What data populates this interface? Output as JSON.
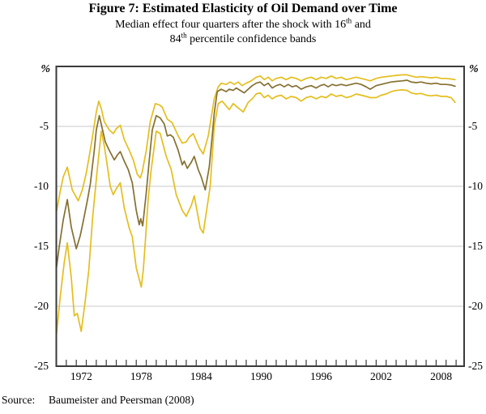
{
  "figure": {
    "title": "Figure 7: Estimated Elasticity of Oil Demand over Time",
    "subtitle_line1": {
      "pre": "Median effect four quarters after the shock with 16",
      "sup": "th",
      "post": " and"
    },
    "subtitle_line2": {
      "pre": "84",
      "sup": "th",
      "post": " percentile confidence bands"
    },
    "source_label": "Source:",
    "source_text": "Baumeister and Peersman (2008)"
  },
  "chart_data": {
    "type": "line",
    "title": "Figure 7: Estimated Elasticity of Oil Demand over Time",
    "subtitle": "Median effect four quarters after the shock with 16th and 84th percentile confidence bands",
    "xlabel": "",
    "ylabel": "%",
    "ylim": [
      -25,
      0
    ],
    "xlim": [
      1970,
      2010.8
    ],
    "grid": "horizontal",
    "grid_values": [
      -5,
      -10,
      -15,
      -20
    ],
    "legend_position": "none",
    "y_tick_values": [
      -5,
      -10,
      -15,
      -20,
      -25
    ],
    "y_tick_labels": [
      "-5",
      "-10",
      "-15",
      "-20",
      "-25"
    ],
    "y_axis_unit": "%",
    "x_tick_years": [
      1972,
      1978,
      1984,
      1990,
      1996,
      2002,
      2008
    ],
    "x_tick_labels": [
      "1972",
      "1978",
      "1984",
      "1990",
      "1996",
      "2002",
      "2008"
    ],
    "x_minor_tick_start": 1971,
    "x_minor_tick_end": 2010,
    "x_minor_tick_step": 1,
    "colors": {
      "band": "#E4BE1E",
      "median": "#857031",
      "grid": "#C9C9C9",
      "axis": "#3A3A3A",
      "text": "#000000"
    },
    "series": [
      {
        "name": "84th percentile band",
        "color": "#E4BE1E",
        "width": 1.7,
        "points": [
          [
            1970.0,
            -12.2
          ],
          [
            1970.4,
            -10.4
          ],
          [
            1970.7,
            -9.2
          ],
          [
            1971.1,
            -8.4
          ],
          [
            1971.6,
            -10.3
          ],
          [
            1972.2,
            -11.2
          ],
          [
            1972.6,
            -10.3
          ],
          [
            1973.0,
            -8.9
          ],
          [
            1973.5,
            -6.5
          ],
          [
            1974.0,
            -3.8
          ],
          [
            1974.25,
            -2.9
          ],
          [
            1974.5,
            -3.5
          ],
          [
            1974.8,
            -4.6
          ],
          [
            1975.3,
            -5.3
          ],
          [
            1975.7,
            -5.6
          ],
          [
            1976.0,
            -5.2
          ],
          [
            1976.4,
            -4.9
          ],
          [
            1976.8,
            -6.1
          ],
          [
            1977.3,
            -7.0
          ],
          [
            1977.7,
            -7.8
          ],
          [
            1978.1,
            -9.0
          ],
          [
            1978.4,
            -9.3
          ],
          [
            1978.6,
            -8.8
          ],
          [
            1979.0,
            -7.0
          ],
          [
            1979.4,
            -4.6
          ],
          [
            1979.9,
            -3.1
          ],
          [
            1980.3,
            -3.2
          ],
          [
            1980.6,
            -3.4
          ],
          [
            1981.1,
            -4.4
          ],
          [
            1981.6,
            -4.7
          ],
          [
            1982.2,
            -5.8
          ],
          [
            1982.6,
            -6.4
          ],
          [
            1983.0,
            -6.3
          ],
          [
            1983.3,
            -5.9
          ],
          [
            1983.7,
            -5.6
          ],
          [
            1984.3,
            -6.8
          ],
          [
            1984.7,
            -7.3
          ],
          [
            1985.2,
            -5.8
          ],
          [
            1985.8,
            -2.7
          ],
          [
            1986.2,
            -1.7
          ],
          [
            1986.5,
            -1.4
          ],
          [
            1987.0,
            -1.5
          ],
          [
            1987.4,
            -1.3
          ],
          [
            1987.8,
            -1.5
          ],
          [
            1988.2,
            -1.3
          ],
          [
            1988.6,
            -1.6
          ],
          [
            1989.0,
            -1.4
          ],
          [
            1989.5,
            -1.2
          ],
          [
            1990.0,
            -0.9
          ],
          [
            1990.4,
            -0.8
          ],
          [
            1990.8,
            -1.1
          ],
          [
            1991.2,
            -0.9
          ],
          [
            1991.6,
            -1.2
          ],
          [
            1992.0,
            -1.0
          ],
          [
            1992.5,
            -0.9
          ],
          [
            1993.0,
            -1.1
          ],
          [
            1993.5,
            -0.9
          ],
          [
            1994.0,
            -1.0
          ],
          [
            1994.5,
            -1.2
          ],
          [
            1995.0,
            -1.0
          ],
          [
            1995.5,
            -0.9
          ],
          [
            1996.0,
            -1.1
          ],
          [
            1996.5,
            -0.9
          ],
          [
            1997.0,
            -1.0
          ],
          [
            1997.5,
            -0.8
          ],
          [
            1998.0,
            -1.0
          ],
          [
            1998.5,
            -0.9
          ],
          [
            1999.0,
            -1.1
          ],
          [
            1999.5,
            -1.0
          ],
          [
            2000.0,
            -0.9
          ],
          [
            2000.5,
            -1.0
          ],
          [
            2001.0,
            -1.1
          ],
          [
            2001.4,
            -1.2
          ],
          [
            2002.0,
            -1.0
          ],
          [
            2002.5,
            -0.9
          ],
          [
            2003.0,
            -0.85
          ],
          [
            2003.5,
            -0.8
          ],
          [
            2004.0,
            -0.75
          ],
          [
            2004.6,
            -0.7
          ],
          [
            2005.1,
            -0.7
          ],
          [
            2005.5,
            -0.8
          ],
          [
            2006.0,
            -0.9
          ],
          [
            2006.5,
            -0.85
          ],
          [
            2007.0,
            -0.9
          ],
          [
            2007.5,
            -0.95
          ],
          [
            2008.0,
            -0.9
          ],
          [
            2008.5,
            -1.0
          ],
          [
            2009.0,
            -1.0
          ],
          [
            2009.5,
            -1.05
          ],
          [
            2009.9,
            -1.1
          ]
        ]
      },
      {
        "name": "Median",
        "color": "#857031",
        "width": 1.7,
        "points": [
          [
            1970.0,
            -16.9
          ],
          [
            1970.3,
            -15.0
          ],
          [
            1970.7,
            -12.8
          ],
          [
            1971.1,
            -11.1
          ],
          [
            1971.5,
            -13.4
          ],
          [
            1972.0,
            -15.2
          ],
          [
            1972.4,
            -14.1
          ],
          [
            1972.7,
            -12.9
          ],
          [
            1973.1,
            -11.2
          ],
          [
            1973.4,
            -9.8
          ],
          [
            1973.8,
            -7.0
          ],
          [
            1974.0,
            -5.3
          ],
          [
            1974.3,
            -4.1
          ],
          [
            1974.6,
            -5.2
          ],
          [
            1974.9,
            -6.3
          ],
          [
            1975.3,
            -7.0
          ],
          [
            1975.8,
            -7.8
          ],
          [
            1976.1,
            -7.4
          ],
          [
            1976.4,
            -7.1
          ],
          [
            1976.8,
            -7.9
          ],
          [
            1977.2,
            -8.6
          ],
          [
            1977.6,
            -9.7
          ],
          [
            1978.0,
            -12.0
          ],
          [
            1978.3,
            -13.2
          ],
          [
            1978.45,
            -12.7
          ],
          [
            1978.65,
            -13.3
          ],
          [
            1979.0,
            -10.5
          ],
          [
            1979.3,
            -7.8
          ],
          [
            1979.6,
            -5.3
          ],
          [
            1980.0,
            -4.1
          ],
          [
            1980.4,
            -4.3
          ],
          [
            1980.8,
            -4.8
          ],
          [
            1981.1,
            -5.8
          ],
          [
            1981.4,
            -5.7
          ],
          [
            1981.7,
            -5.9
          ],
          [
            1982.2,
            -7.0
          ],
          [
            1982.6,
            -8.2
          ],
          [
            1982.8,
            -7.9
          ],
          [
            1983.1,
            -8.5
          ],
          [
            1983.5,
            -8.0
          ],
          [
            1983.8,
            -7.5
          ],
          [
            1984.2,
            -8.6
          ],
          [
            1984.5,
            -9.2
          ],
          [
            1984.9,
            -10.3
          ],
          [
            1985.3,
            -8.4
          ],
          [
            1985.6,
            -5.8
          ],
          [
            1985.8,
            -3.9
          ],
          [
            1986.1,
            -2.1
          ],
          [
            1986.5,
            -1.9
          ],
          [
            1987.0,
            -2.1
          ],
          [
            1987.3,
            -1.9
          ],
          [
            1987.7,
            -2.0
          ],
          [
            1988.0,
            -1.8
          ],
          [
            1988.4,
            -2.0
          ],
          [
            1988.8,
            -2.2
          ],
          [
            1989.2,
            -1.9
          ],
          [
            1989.6,
            -1.6
          ],
          [
            1990.0,
            -1.4
          ],
          [
            1990.4,
            -1.3
          ],
          [
            1990.8,
            -1.6
          ],
          [
            1991.2,
            -1.4
          ],
          [
            1991.6,
            -1.8
          ],
          [
            1992.0,
            -1.6
          ],
          [
            1992.4,
            -1.5
          ],
          [
            1992.8,
            -1.7
          ],
          [
            1993.2,
            -1.5
          ],
          [
            1993.6,
            -1.7
          ],
          [
            1994.0,
            -1.6
          ],
          [
            1994.5,
            -1.9
          ],
          [
            1995.0,
            -1.7
          ],
          [
            1995.5,
            -1.6
          ],
          [
            1996.0,
            -1.8
          ],
          [
            1996.4,
            -1.6
          ],
          [
            1996.8,
            -1.5
          ],
          [
            1997.2,
            -1.7
          ],
          [
            1997.6,
            -1.5
          ],
          [
            1998.0,
            -1.6
          ],
          [
            1998.5,
            -1.5
          ],
          [
            1999.0,
            -1.6
          ],
          [
            1999.5,
            -1.5
          ],
          [
            2000.0,
            -1.4
          ],
          [
            2000.5,
            -1.5
          ],
          [
            2001.0,
            -1.7
          ],
          [
            2001.4,
            -1.9
          ],
          [
            2002.0,
            -1.6
          ],
          [
            2002.5,
            -1.5
          ],
          [
            2003.0,
            -1.4
          ],
          [
            2003.5,
            -1.3
          ],
          [
            2004.0,
            -1.25
          ],
          [
            2004.6,
            -1.2
          ],
          [
            2005.1,
            -1.15
          ],
          [
            2005.5,
            -1.3
          ],
          [
            2006.0,
            -1.35
          ],
          [
            2006.5,
            -1.3
          ],
          [
            2007.0,
            -1.4
          ],
          [
            2007.5,
            -1.45
          ],
          [
            2008.0,
            -1.4
          ],
          [
            2008.5,
            -1.5
          ],
          [
            2009.0,
            -1.5
          ],
          [
            2009.5,
            -1.55
          ],
          [
            2009.9,
            -1.65
          ]
        ]
      },
      {
        "name": "16th percentile band",
        "color": "#E4BE1E",
        "width": 1.7,
        "points": [
          [
            1970.0,
            -22.5
          ],
          [
            1970.4,
            -19.2
          ],
          [
            1970.8,
            -16.3
          ],
          [
            1971.1,
            -14.7
          ],
          [
            1971.5,
            -17.6
          ],
          [
            1971.8,
            -20.8
          ],
          [
            1972.1,
            -20.6
          ],
          [
            1972.5,
            -22.1
          ],
          [
            1972.9,
            -19.5
          ],
          [
            1973.25,
            -17.0
          ],
          [
            1973.65,
            -12.5
          ],
          [
            1974.1,
            -8.6
          ],
          [
            1974.5,
            -5.4
          ],
          [
            1974.8,
            -6.6
          ],
          [
            1975.0,
            -7.7
          ],
          [
            1975.4,
            -10.0
          ],
          [
            1975.7,
            -10.7
          ],
          [
            1976.0,
            -10.2
          ],
          [
            1976.4,
            -9.7
          ],
          [
            1976.8,
            -11.8
          ],
          [
            1977.3,
            -13.5
          ],
          [
            1977.6,
            -14.2
          ],
          [
            1978.0,
            -16.8
          ],
          [
            1978.5,
            -18.4
          ],
          [
            1978.7,
            -17.0
          ],
          [
            1978.9,
            -14.7
          ],
          [
            1979.2,
            -11.0
          ],
          [
            1979.5,
            -8.6
          ],
          [
            1980.0,
            -5.4
          ],
          [
            1980.4,
            -5.6
          ],
          [
            1981.0,
            -7.5
          ],
          [
            1981.5,
            -8.6
          ],
          [
            1982.0,
            -10.7
          ],
          [
            1982.6,
            -12.0
          ],
          [
            1983.0,
            -12.5
          ],
          [
            1983.5,
            -11.6
          ],
          [
            1983.8,
            -10.8
          ],
          [
            1984.4,
            -13.5
          ],
          [
            1984.7,
            -13.9
          ],
          [
            1985.4,
            -10.0
          ],
          [
            1985.8,
            -5.0
          ],
          [
            1986.2,
            -3.1
          ],
          [
            1986.6,
            -2.9
          ],
          [
            1987.3,
            -3.6
          ],
          [
            1987.7,
            -3.1
          ],
          [
            1988.1,
            -3.4
          ],
          [
            1988.7,
            -3.8
          ],
          [
            1989.2,
            -3.0
          ],
          [
            1989.6,
            -2.7
          ],
          [
            1990.0,
            -2.3
          ],
          [
            1990.4,
            -2.2
          ],
          [
            1990.8,
            -2.6
          ],
          [
            1991.2,
            -2.4
          ],
          [
            1991.6,
            -2.7
          ],
          [
            1992.0,
            -2.5
          ],
          [
            1992.5,
            -2.4
          ],
          [
            1993.0,
            -2.7
          ],
          [
            1993.5,
            -2.5
          ],
          [
            1994.0,
            -2.6
          ],
          [
            1994.5,
            -2.9
          ],
          [
            1995.0,
            -2.6
          ],
          [
            1995.5,
            -2.5
          ],
          [
            1996.0,
            -2.7
          ],
          [
            1996.5,
            -2.5
          ],
          [
            1997.0,
            -2.6
          ],
          [
            1997.5,
            -2.3
          ],
          [
            1998.0,
            -2.5
          ],
          [
            1998.5,
            -2.4
          ],
          [
            1999.0,
            -2.6
          ],
          [
            1999.5,
            -2.5
          ],
          [
            2000.0,
            -2.3
          ],
          [
            2000.5,
            -2.4
          ],
          [
            2001.0,
            -2.5
          ],
          [
            2001.4,
            -2.6
          ],
          [
            2002.0,
            -2.6
          ],
          [
            2002.5,
            -2.4
          ],
          [
            2003.0,
            -2.3
          ],
          [
            2003.5,
            -2.1
          ],
          [
            2004.0,
            -2.0
          ],
          [
            2004.6,
            -1.95
          ],
          [
            2005.1,
            -2.0
          ],
          [
            2005.5,
            -2.2
          ],
          [
            2006.0,
            -2.3
          ],
          [
            2006.5,
            -2.25
          ],
          [
            2007.0,
            -2.4
          ],
          [
            2007.5,
            -2.45
          ],
          [
            2008.0,
            -2.4
          ],
          [
            2008.5,
            -2.5
          ],
          [
            2009.0,
            -2.5
          ],
          [
            2009.5,
            -2.6
          ],
          [
            2009.9,
            -3.0
          ]
        ]
      }
    ]
  }
}
